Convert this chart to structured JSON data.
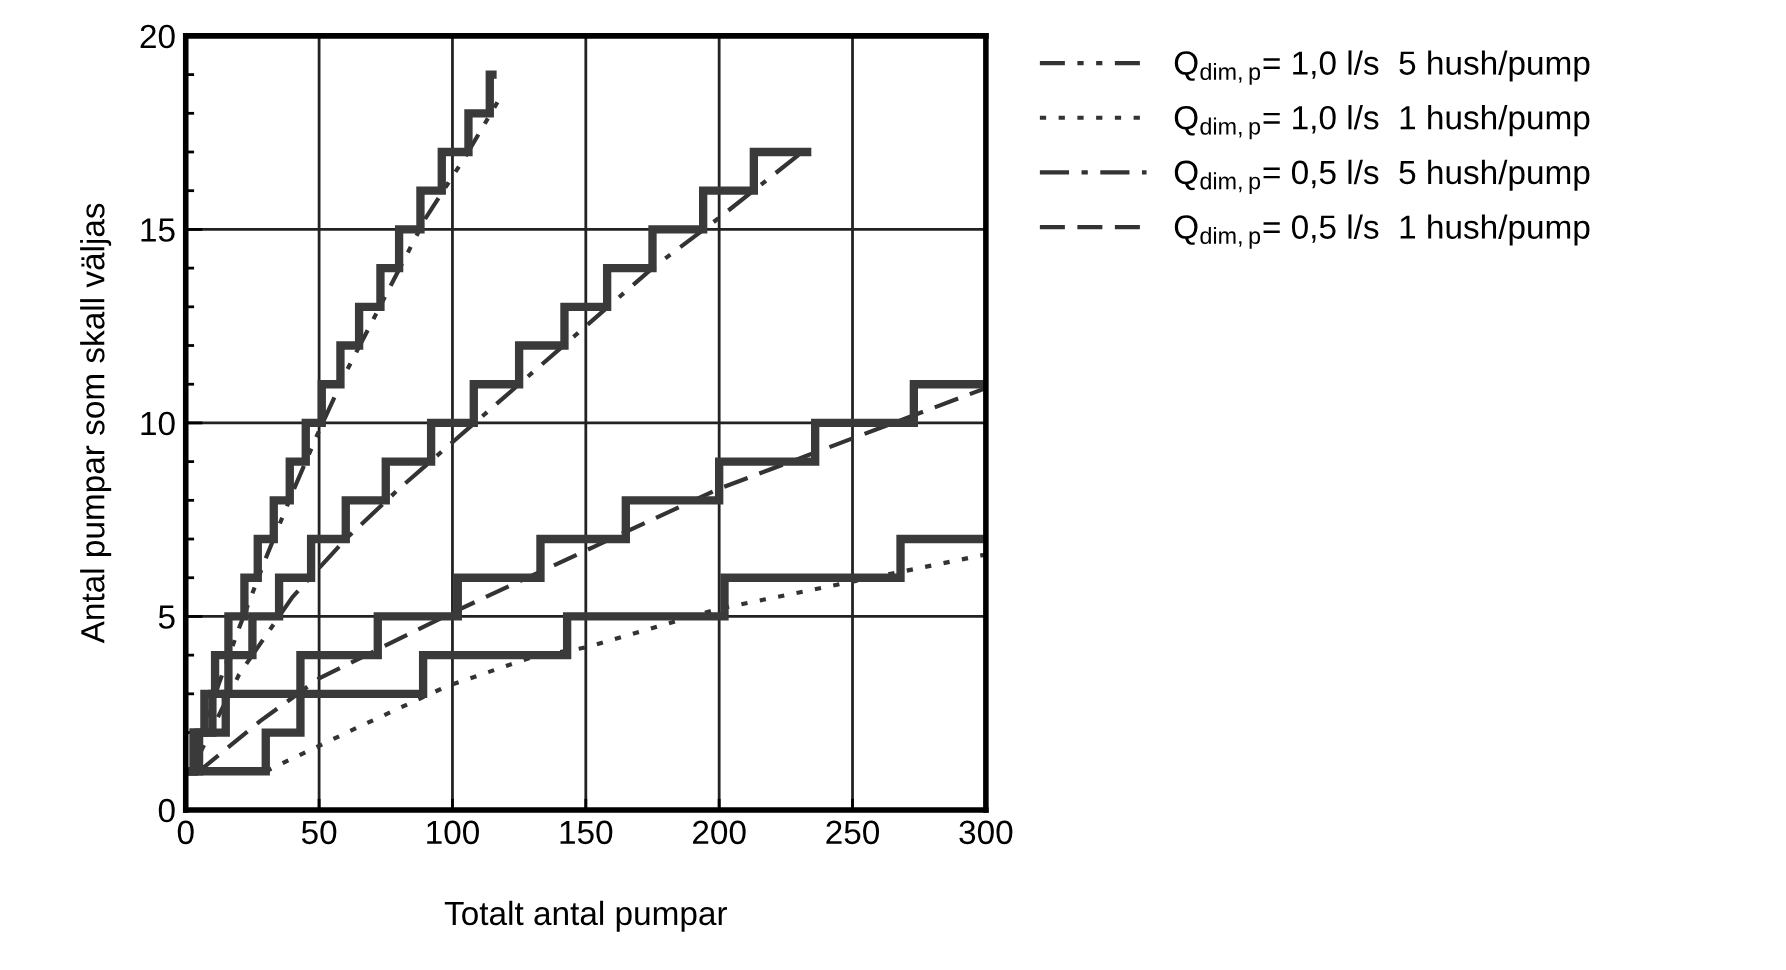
{
  "chart_data": {
    "type": "line",
    "xlabel": "Totalt antal pumpar",
    "ylabel": "Antal pumpar som skall väljas",
    "xlim": [
      0,
      300
    ],
    "xticks": [
      0,
      50,
      100,
      150,
      200,
      250,
      300
    ],
    "ylim": [
      0,
      20
    ],
    "yticks": [
      0,
      {
        "value": 1,
        "label": null
      },
      {
        "value": 2,
        "label": null
      },
      {
        "value": 3,
        "label": null
      },
      {
        "value": 4,
        "label": null
      },
      5,
      {
        "value": 6,
        "label": null
      },
      {
        "value": 7,
        "label": null
      },
      {
        "value": 8,
        "label": null
      },
      {
        "value": 9,
        "label": null
      },
      10,
      {
        "value": 11,
        "label": null
      },
      {
        "value": 12,
        "label": null
      },
      {
        "value": 13,
        "label": null
      },
      {
        "value": 14,
        "label": null
      },
      15,
      {
        "value": 16,
        "label": null
      },
      {
        "value": 17,
        "label": null
      },
      {
        "value": 18,
        "label": null
      },
      {
        "value": 19,
        "label": null
      },
      20
    ],
    "grid": true,
    "legend": "top right",
    "series": [
      {
        "name": "Q$_{dim,p}$= 1,0 l/s  5 hush/pump",
        "line_style": "dashdotdot",
        "color": "#333333",
        "x": [
          3,
          10,
          20,
          30,
          40,
          50,
          60,
          75,
          90,
          105,
          117
        ],
        "values": [
          1,
          2.8,
          4.7,
          6.5,
          8.2,
          9.8,
          11.3,
          13.3,
          15.3,
          16.9,
          18.3
        ]
      },
      {
        "name": "Q$_{dim,p}$= 1,0 l/s  1 hush/pump",
        "line_style": "dotted",
        "color": "#333333",
        "x": [
          30,
          65,
          98,
          130,
          150,
          200,
          250,
          300
        ],
        "values": [
          1,
          2.15,
          3.2,
          3.95,
          4.2,
          5.2,
          5.9,
          6.6
        ]
      },
      {
        "name": "Q$_{dim,p}$= 0,5 l/s  5 hush/pump",
        "line_style": "dashdot",
        "color": "#333333",
        "x": [
          2,
          20,
          40,
          60,
          80,
          100,
          125,
          150,
          175,
          200,
          233
        ],
        "values": [
          1,
          3.5,
          5.5,
          7,
          8.3,
          9.5,
          11,
          12.5,
          14,
          15.3,
          17.1
        ]
      },
      {
        "name": "Q$_{dim,p}$= 0,5 l/s  1 hush/pump",
        "line_style": "dashed",
        "color": "#333333",
        "x": [
          5,
          28,
          50,
          100,
          153,
          200,
          250,
          300
        ],
        "values": [
          1,
          2.3,
          3.4,
          5.1,
          6.8,
          8.3,
          9.6,
          10.9
        ]
      },
      {
        "type": "step",
        "color": "#3a3a3a",
        "x": [
          1,
          3,
          7,
          11,
          16,
          22,
          27,
          33,
          39,
          45,
          51,
          58,
          65,
          73,
          80,
          88,
          96,
          106,
          114,
          115
        ],
        "values": [
          1,
          2,
          3,
          4,
          5,
          6,
          7,
          8,
          9,
          10,
          11,
          12,
          13,
          14,
          15,
          16,
          17,
          18,
          19,
          19
        ]
      },
      {
        "type": "step",
        "color": "#3a3a3a",
        "x": [
          1,
          3,
          10,
          16,
          25,
          35,
          47,
          60,
          75,
          92,
          108,
          125,
          142,
          158,
          175,
          194,
          213,
          233
        ],
        "values": [
          1,
          2,
          3,
          4,
          5,
          6,
          7,
          8,
          9,
          10,
          11,
          12,
          13,
          14,
          15,
          16,
          17,
          17
        ]
      },
      {
        "type": "step",
        "color": "#3a3a3a",
        "x": [
          1,
          5,
          15,
          43,
          72,
          102,
          133,
          165,
          200,
          236,
          273,
          300
        ],
        "values": [
          1,
          2,
          3,
          4,
          5,
          6,
          7,
          8,
          9,
          10,
          11,
          11
        ]
      },
      {
        "type": "step",
        "color": "#3a3a3a",
        "x": [
          1,
          30,
          43,
          89,
          143,
          202,
          268,
          300
        ],
        "values": [
          1,
          2,
          3,
          4,
          5,
          6,
          7,
          7
        ]
      }
    ]
  }
}
